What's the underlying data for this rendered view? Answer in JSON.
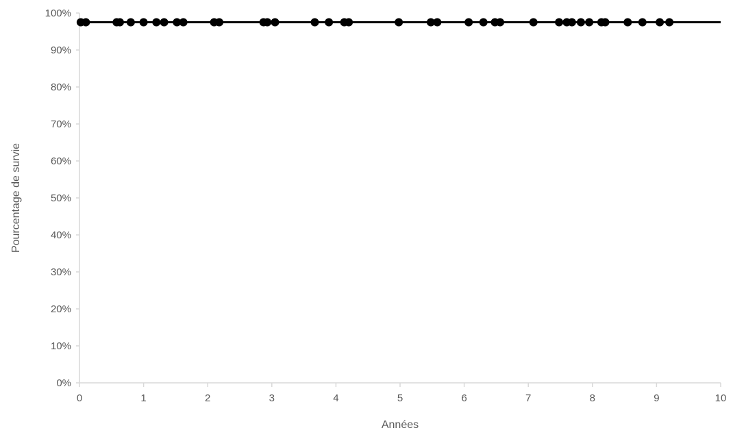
{
  "chart_data": {
    "type": "line",
    "title": "",
    "xlabel": "Années",
    "ylabel": "Pourcentage de survie",
    "xlim": [
      0,
      10
    ],
    "ylim": [
      0,
      100
    ],
    "x_ticks": [
      0,
      1,
      2,
      3,
      4,
      5,
      6,
      7,
      8,
      9,
      10
    ],
    "x_tick_labels": [
      "0",
      "1",
      "2",
      "3",
      "4",
      "5",
      "6",
      "7",
      "8",
      "9",
      "10"
    ],
    "y_ticks": [
      0,
      10,
      20,
      30,
      40,
      50,
      60,
      70,
      80,
      90,
      100
    ],
    "y_tick_labels": [
      "0%",
      "10%",
      "20%",
      "30%",
      "40%",
      "50%",
      "60%",
      "70%",
      "80%",
      "90%",
      "100%"
    ],
    "grid": false,
    "legend": "none",
    "colors": {
      "line": "#000000",
      "markers": "#000000",
      "axis": "#d9d9d9",
      "text": "#595959"
    },
    "series": [
      {
        "line": {
          "x": [
            0,
            10
          ],
          "y": [
            97.5,
            97.5
          ]
        },
        "censored_points": {
          "x": [
            0.02,
            0.1,
            0.58,
            0.63,
            0.8,
            1.0,
            1.2,
            1.32,
            1.52,
            1.62,
            2.1,
            2.18,
            2.87,
            2.93,
            3.05,
            3.67,
            3.89,
            4.13,
            4.2,
            4.98,
            5.48,
            5.58,
            6.07,
            6.3,
            6.48,
            6.56,
            7.08,
            7.48,
            7.6,
            7.68,
            7.82,
            7.95,
            8.14,
            8.2,
            8.55,
            8.78,
            9.05,
            9.2
          ],
          "y": [
            97.5,
            97.5,
            97.5,
            97.5,
            97.5,
            97.5,
            97.5,
            97.5,
            97.5,
            97.5,
            97.5,
            97.5,
            97.5,
            97.5,
            97.5,
            97.5,
            97.5,
            97.5,
            97.5,
            97.5,
            97.5,
            97.5,
            97.5,
            97.5,
            97.5,
            97.5,
            97.5,
            97.5,
            97.5,
            97.5,
            97.5,
            97.5,
            97.5,
            97.5,
            97.5,
            97.5,
            97.5,
            97.5
          ]
        }
      }
    ]
  }
}
